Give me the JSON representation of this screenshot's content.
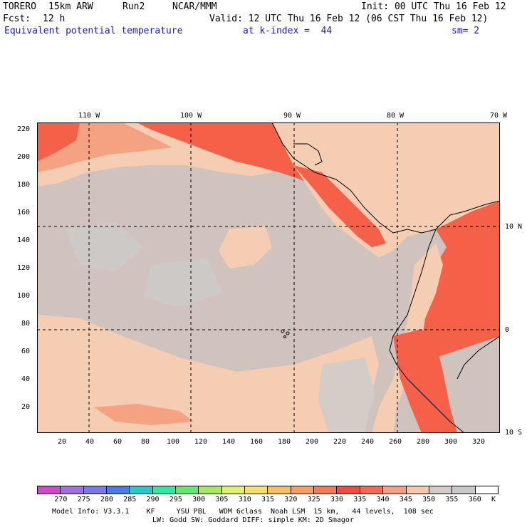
{
  "header": {
    "model": "TORERO",
    "resolution": "15km ARW",
    "run": "Run2",
    "org": "NCAR/MMM",
    "init": "Init: 00 UTC Thu 16 Feb 12",
    "fcst_label": "Fcst:",
    "fcst_value": "12 h",
    "valid": "Valid: 12 UTC Thu 16 Feb 12 (06 CST Thu 16 Feb 12)",
    "field": "Equivalent potential temperature",
    "level": "at k-index =  44",
    "smoothing": "sm= 2"
  },
  "map": {
    "lon_labels": [
      "110 W",
      "100 W",
      "90 W",
      "80 W",
      "70 W"
    ],
    "lat_labels": [
      "10 N",
      "0",
      "10 S"
    ],
    "y_ticks": [
      "220",
      "200",
      "180",
      "160",
      "140",
      "120",
      "100",
      "80",
      "60",
      "40",
      "20"
    ],
    "x_ticks": [
      "20",
      "40",
      "60",
      "80",
      "100",
      "120",
      "140",
      "160",
      "180",
      "200",
      "220",
      "240",
      "260",
      "280",
      "300",
      "320"
    ],
    "background_colors": {
      "ocean": "#d0c3bd",
      "gray_patch": "#cccccc",
      "light_peach": "#f5cdb2",
      "salmon": "#f5a283",
      "red": "#f56049"
    }
  },
  "colorbar": {
    "labels": [
      "270",
      "275",
      "280",
      "285",
      "290",
      "295",
      "300",
      "305",
      "310",
      "315",
      "320",
      "325",
      "330",
      "335",
      "340",
      "345",
      "350",
      "355",
      "360",
      "K"
    ],
    "colors": [
      "#d048d0",
      "#a070e0",
      "#7b78e8",
      "#4a7be8",
      "#28c8c8",
      "#30e8a0",
      "#60e870",
      "#a8e860",
      "#e0f070",
      "#f8e070",
      "#f8c060",
      "#f5a060",
      "#f27a55",
      "#f24a40",
      "#f56a55",
      "#f5a085",
      "#f5c8ae",
      "#d6cbc4",
      "#c8c8c8",
      "#ffffff"
    ]
  },
  "footer": {
    "line1": "Model Info: V3.3.1    KF     YSU PBL   WDM 6class  Noah LSM  15 km,   44 levels,  108 sec",
    "line2": "LW: Godd SW: Goddard DIFF: simple KM: 2D Smagor"
  }
}
